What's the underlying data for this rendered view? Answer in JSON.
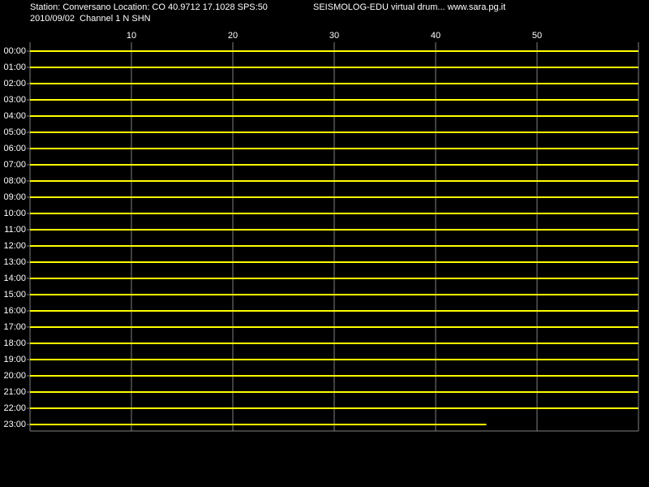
{
  "chart_data": {
    "type": "helicorder",
    "title": "Station: Conversano Location: CO 40.9712 17.1028 SPS:50",
    "subtitle": "2010/09/02  Channel 1 N SHN",
    "annotation": "SEISMOLOG-EDU virtual drum... www.sara.pg.it",
    "categories": [
      "00:00",
      "01:00",
      "02:00",
      "03:00",
      "04:00",
      "05:00",
      "06:00",
      "07:00",
      "08:00",
      "09:00",
      "10:00",
      "11:00",
      "12:00",
      "13:00",
      "14:00",
      "15:00",
      "16:00",
      "17:00",
      "18:00",
      "19:00",
      "20:00",
      "21:00",
      "22:00",
      "23:00"
    ],
    "values": [
      60,
      60,
      60,
      60,
      60,
      60,
      60,
      60,
      60,
      60,
      60,
      60,
      60,
      60,
      60,
      60,
      60,
      60,
      60,
      60,
      60,
      60,
      60,
      45
    ],
    "color": "#ffff00",
    "xlim": [
      0,
      60
    ],
    "xticks": [
      10,
      20,
      30,
      40,
      50
    ],
    "grid": true
  }
}
